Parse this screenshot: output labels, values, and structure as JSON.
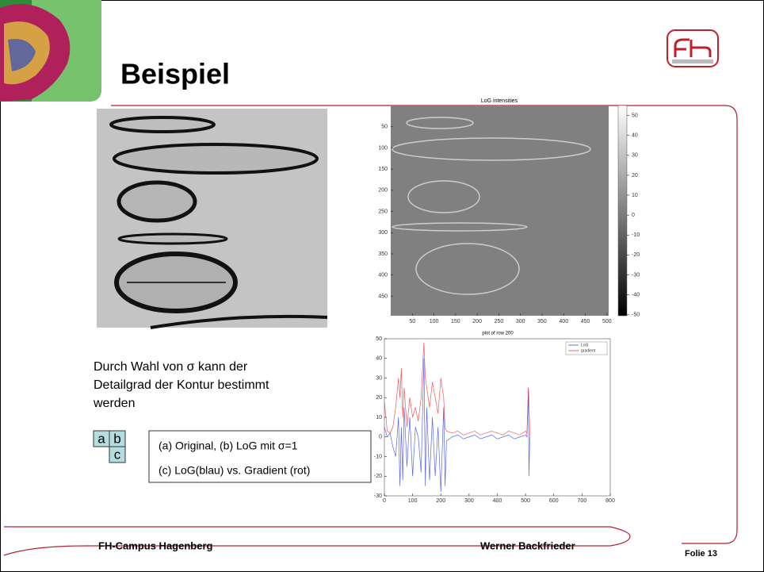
{
  "header": {
    "title": "Beispiel"
  },
  "body": {
    "lines": [
      "Durch Wahl von σ kann der",
      "Detailgrad der Kontur bestimmt",
      "werden"
    ]
  },
  "layout_key": {
    "cells": [
      "a",
      "b",
      "c"
    ]
  },
  "caption": {
    "lines": [
      "(a)  Original, (b) LoG mit σ=1",
      "(c) LoG(blau) vs. Gradient (rot)"
    ]
  },
  "log_image": {
    "title": "LoG intensities",
    "xlim": [
      0,
      504
    ],
    "ylim": [
      0,
      496
    ],
    "xticks": [
      50,
      100,
      150,
      200,
      250,
      300,
      350,
      400,
      450,
      500
    ],
    "yticks": [
      50,
      100,
      150,
      200,
      250,
      300,
      350,
      400,
      450
    ],
    "colorbar": {
      "ylim": [
        -50.5,
        55
      ],
      "yticks": [
        50,
        40,
        30,
        20,
        10,
        0,
        -10,
        -20,
        -30,
        -40,
        -50
      ]
    }
  },
  "row_plot": {
    "title": "plot of row 200",
    "xlim": [
      0,
      800
    ],
    "ylim": [
      -30,
      50
    ],
    "xticks": [
      0,
      100,
      200,
      300,
      400,
      500,
      600,
      700,
      800
    ],
    "yticks": [
      -30,
      -20,
      -10,
      0,
      10,
      20,
      30,
      40,
      50
    ],
    "x": [
      0,
      10,
      20,
      30,
      40,
      50,
      55,
      60,
      65,
      70,
      80,
      90,
      100,
      110,
      120,
      130,
      140,
      145,
      150,
      160,
      170,
      180,
      190,
      200,
      210,
      215,
      220,
      240,
      260,
      280,
      300,
      320,
      340,
      360,
      380,
      400,
      420,
      440,
      460,
      480,
      500,
      505,
      510,
      512,
      515
    ],
    "series": [
      {
        "name": "LoG",
        "color": "#3b4cf0",
        "values": [
          5,
          0,
          2,
          -5,
          -10,
          10,
          -25,
          5,
          -22,
          15,
          -15,
          10,
          -20,
          5,
          0,
          -18,
          40,
          -25,
          15,
          -22,
          10,
          -20,
          5,
          -28,
          15,
          -25,
          -2,
          0,
          1,
          -1,
          0,
          1,
          -1,
          0,
          1,
          -1,
          0,
          1,
          -1,
          0,
          1,
          0,
          25,
          -20,
          0
        ]
      },
      {
        "name": "gradient",
        "color": "#f03b3b",
        "values": [
          18,
          3,
          2,
          5,
          15,
          30,
          20,
          35,
          10,
          25,
          5,
          20,
          10,
          15,
          8,
          20,
          48,
          30,
          25,
          15,
          28,
          20,
          12,
          30,
          20,
          5,
          3,
          2,
          3,
          1,
          2,
          3,
          1,
          2,
          3,
          2,
          1,
          3,
          2,
          1,
          3,
          2,
          25,
          20,
          0
        ]
      }
    ]
  },
  "footer": {
    "left": "FH-Campus Hagenberg",
    "right": "Werner Backfrieder",
    "slide": "Folie 13"
  }
}
